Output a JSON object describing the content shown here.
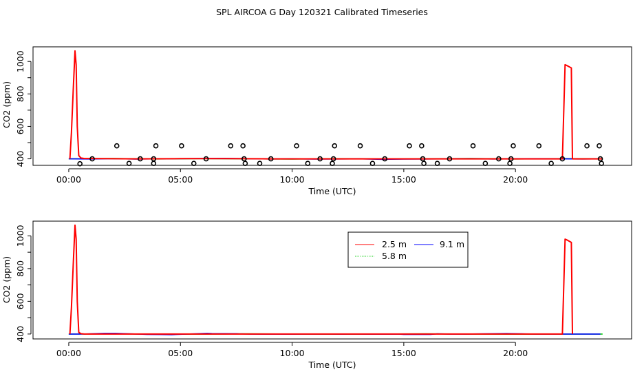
{
  "title": "SPL AIRCOA G  Day 120321  Calibrated Timeseries",
  "colors": {
    "s_2_5": "#ff0000",
    "s_5_8": "#00cd00",
    "s_9_1": "#0000ff",
    "markers": "#000000",
    "flat": "#000000"
  },
  "legend": {
    "items": [
      {
        "label": "2.5 m",
        "color": "#ff0000"
      },
      {
        "label": "5.8 m",
        "color": "#00cd00"
      },
      {
        "label": "9.1 m",
        "color": "#0000ff"
      }
    ]
  },
  "chart_data": [
    {
      "type": "line",
      "xlabel": "Time (UTC)",
      "ylabel": "CO2 (ppm)",
      "xlim": [
        -1.6,
        25.2
      ],
      "ylim": [
        360,
        1090
      ],
      "xticks": [
        0,
        5,
        10,
        15,
        20
      ],
      "xtick_labels": [
        "00:00",
        "05:00",
        "10:00",
        "15:00",
        "20:00"
      ],
      "yticks": [
        400,
        500,
        600,
        700,
        800,
        900,
        1000
      ],
      "ytick_labels": {
        "400": "400",
        "600": "600",
        "800": "800",
        "1000": "1000"
      },
      "series": [
        {
          "name": "2.5 m",
          "color": "#ff0000",
          "x": [
            0.05,
            0.12,
            0.2,
            0.28,
            0.33,
            0.38,
            0.45,
            0.55,
            0.7,
            1.5,
            3.0,
            5.0,
            7.0,
            9.0,
            11.0,
            13.0,
            15.0,
            17.0,
            19.0,
            21.0,
            22.1,
            22.22,
            22.3,
            22.5,
            22.55,
            22.7,
            23.5,
            23.9
          ],
          "y": [
            400,
            560,
            820,
            1065,
            980,
            600,
            420,
            405,
            402,
            401,
            400,
            401,
            401,
            400,
            400,
            400,
            400,
            400,
            400,
            400,
            400,
            980,
            975,
            960,
            400,
            400,
            400,
            400
          ]
        },
        {
          "name": "5.8 m",
          "color": "#00cd00",
          "x": [
            0.0,
            2.0,
            4.0,
            6.0,
            8.0,
            10.0,
            12.0,
            14.0,
            16.0,
            18.0,
            20.0,
            22.0,
            23.9
          ],
          "y": [
            400,
            402,
            399,
            401,
            400,
            398,
            401,
            399,
            400,
            402,
            399,
            401,
            400
          ]
        },
        {
          "name": "9.1 m",
          "color": "#0000ff",
          "x": [
            0.0,
            1.0,
            2.0,
            3.0,
            4.0,
            5.0,
            6.0,
            7.0,
            8.0,
            9.0,
            10.0,
            11.0,
            12.0,
            13.0,
            14.0,
            15.0,
            16.0,
            17.0,
            18.0,
            19.0,
            20.0,
            21.0,
            22.0,
            23.0,
            23.9
          ],
          "y": [
            400,
            399,
            401,
            398,
            400,
            401,
            402,
            403,
            401,
            399,
            400,
            398,
            399,
            400,
            397,
            398,
            399,
            400,
            401,
            399,
            400,
            401,
            400,
            399,
            400
          ]
        }
      ],
      "markers": {
        "x": [
          0.5,
          1.05,
          2.15,
          2.7,
          3.2,
          3.8,
          3.8,
          3.9,
          5.05,
          5.6,
          6.15,
          7.25,
          7.8,
          7.85,
          7.9,
          8.55,
          9.05,
          10.2,
          10.7,
          11.25,
          11.8,
          11.85,
          11.9,
          13.05,
          13.6,
          14.15,
          15.25,
          15.8,
          15.85,
          15.9,
          16.5,
          17.05,
          18.1,
          18.65,
          19.25,
          19.75,
          19.8,
          19.9,
          21.05,
          21.6,
          22.1,
          23.2,
          23.75,
          23.8,
          23.85
        ],
        "y": [
          370,
          400,
          480,
          372,
          400,
          372,
          400,
          480,
          480,
          372,
          400,
          480,
          480,
          400,
          372,
          372,
          400,
          480,
          372,
          400,
          372,
          400,
          480,
          480,
          372,
          400,
          480,
          480,
          400,
          372,
          372,
          400,
          480,
          372,
          400,
          372,
          400,
          480,
          480,
          372,
          400,
          480,
          480,
          400,
          372
        ]
      }
    },
    {
      "type": "line",
      "xlabel": "Time (UTC)",
      "ylabel": "CO2 (ppm)",
      "xlim": [
        -1.6,
        25.2
      ],
      "ylim": [
        370,
        1090
      ],
      "xticks": [
        0,
        5,
        10,
        15,
        20
      ],
      "xtick_labels": [
        "00:00",
        "05:00",
        "10:00",
        "15:00",
        "20:00"
      ],
      "yticks": [
        400,
        500,
        600,
        700,
        800,
        900,
        1000
      ],
      "ytick_labels": {
        "400": "400",
        "600": "600",
        "800": "800",
        "1000": "1000"
      },
      "series": [
        {
          "name": "2.5 m",
          "color": "#ff0000",
          "x": [
            0.05,
            0.12,
            0.2,
            0.28,
            0.33,
            0.38,
            0.45,
            0.55,
            0.7,
            22.1,
            22.22,
            22.3,
            22.5,
            22.55
          ],
          "y": [
            400,
            560,
            820,
            1065,
            980,
            600,
            410,
            402,
            400,
            400,
            980,
            975,
            960,
            400
          ]
        },
        {
          "name": "5.8 m",
          "color": "#00cd00",
          "x": [
            0.0,
            2.0,
            4.0,
            6.0,
            8.0,
            10.0,
            12.0,
            14.0,
            16.0,
            18.0,
            20.0,
            22.0,
            23.9
          ],
          "y": [
            400,
            401,
            399,
            400,
            401,
            400,
            399,
            400,
            401,
            400,
            399,
            400,
            400
          ]
        },
        {
          "name": "9.1 m",
          "color": "#0000ff",
          "x": [
            0.0,
            0.6,
            1.6,
            2.1,
            3.2,
            3.5,
            4.1,
            4.6,
            5.3,
            6.2,
            6.4,
            7.5,
            7.6,
            8.1,
            9.0,
            10.0,
            10.5,
            11.8,
            12.2,
            12.9,
            13.4,
            14.8,
            15.0,
            16.2,
            16.5,
            17.0,
            17.8,
            18.6,
            19.0,
            19.6,
            20.3,
            21.0,
            22.0,
            23.8
          ],
          "y": [
            400,
            400,
            404,
            404,
            399,
            398,
            397,
            396,
            400,
            404,
            403,
            402,
            401,
            400,
            399,
            399,
            400,
            400,
            399,
            400,
            399,
            399,
            398,
            398,
            401,
            400,
            400,
            401,
            402,
            403,
            401,
            400,
            400,
            400
          ]
        }
      ]
    }
  ]
}
